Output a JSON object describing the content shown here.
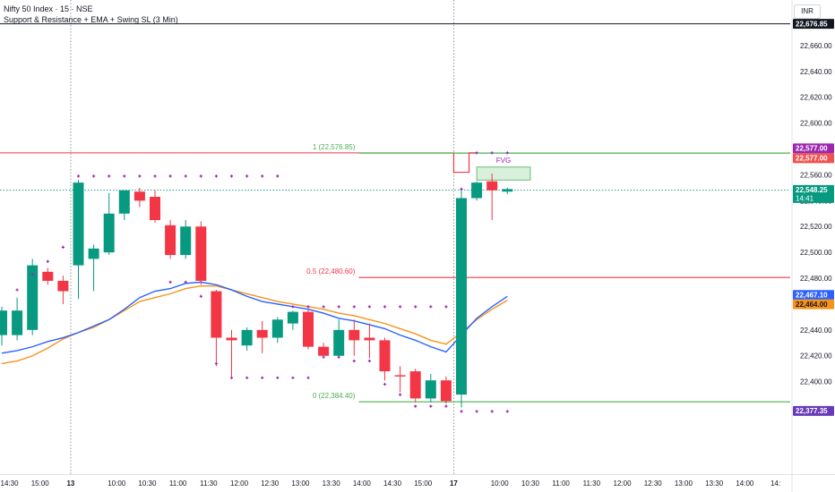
{
  "header": {
    "title": "Nifty 50 Index · 15 · NSE",
    "indicator": "Support & Resistance + EMA + Swing SL (3 Min)",
    "currency": "INR"
  },
  "chart_data": {
    "type": "candlestick",
    "ylim": [
      22360,
      22690
    ],
    "y_ticks": [
      22400,
      22420,
      22440,
      22460,
      22480,
      22500,
      22520,
      22540,
      22560,
      22580,
      22600,
      22620,
      22640,
      22660
    ],
    "y_tick_labels": [
      "22,400.00",
      "22,420.00",
      "22,440.00",
      "22,460.00",
      "22,480.00",
      "22,500.00",
      "22,520.00",
      "22,540.00",
      "22,560.00",
      "22,580.00",
      "22,600.00",
      "22,620.00",
      "22,640.00",
      "22,660.00"
    ],
    "x_tick_labels": [
      {
        "i": 0.5,
        "label": "14:30"
      },
      {
        "i": 2.5,
        "label": "15:00"
      },
      {
        "i": 4.5,
        "label": "13"
      },
      {
        "i": 7.5,
        "label": "10:00"
      },
      {
        "i": 9.5,
        "label": "10:30"
      },
      {
        "i": 11.5,
        "label": "11:00"
      },
      {
        "i": 13.5,
        "label": "11:30"
      },
      {
        "i": 15.5,
        "label": "12:00"
      },
      {
        "i": 17.5,
        "label": "12:30"
      },
      {
        "i": 19.5,
        "label": "13:00"
      },
      {
        "i": 21.5,
        "label": "13:30"
      },
      {
        "i": 23.5,
        "label": "14:00"
      },
      {
        "i": 25.5,
        "label": "14:30"
      },
      {
        "i": 27.5,
        "label": "15:00"
      },
      {
        "i": 29.5,
        "label": "17"
      },
      {
        "i": 32.5,
        "label": "10:00"
      },
      {
        "i": 34.5,
        "label": "10:30"
      },
      {
        "i": 36.5,
        "label": "11:00"
      },
      {
        "i": 38.5,
        "label": "11:30"
      },
      {
        "i": 40.5,
        "label": "12:00"
      },
      {
        "i": 42.5,
        "label": "12:30"
      },
      {
        "i": 44.5,
        "label": "13:00"
      },
      {
        "i": 46.5,
        "label": "13:30"
      },
      {
        "i": 48.5,
        "label": "14:00"
      },
      {
        "i": 50.5,
        "label": "14:"
      }
    ],
    "candles": [
      {
        "o": 22436,
        "h": 22458,
        "l": 22428,
        "c": 22455
      },
      {
        "o": 22436,
        "h": 22465,
        "l": 22432,
        "c": 22455
      },
      {
        "o": 22440,
        "h": 22495,
        "l": 22436,
        "c": 22490
      },
      {
        "o": 22485,
        "h": 22488,
        "l": 22475,
        "c": 22478
      },
      {
        "o": 22478,
        "h": 22482,
        "l": 22460,
        "c": 22470
      },
      {
        "o": 22490,
        "h": 22556,
        "l": 22464,
        "c": 22554
      },
      {
        "o": 22495,
        "h": 22506,
        "l": 22470,
        "c": 22503
      },
      {
        "o": 22500,
        "h": 22546,
        "l": 22498,
        "c": 22530
      },
      {
        "o": 22530,
        "h": 22548,
        "l": 22525,
        "c": 22548
      },
      {
        "o": 22547,
        "h": 22550,
        "l": 22535,
        "c": 22540
      },
      {
        "o": 22543,
        "h": 22548,
        "l": 22523,
        "c": 22525
      },
      {
        "o": 22521,
        "h": 22525,
        "l": 22495,
        "c": 22498
      },
      {
        "o": 22498,
        "h": 22525,
        "l": 22495,
        "c": 22520
      },
      {
        "o": 22520,
        "h": 22524,
        "l": 22475,
        "c": 22478
      },
      {
        "o": 22470,
        "h": 22471,
        "l": 22412,
        "c": 22434
      },
      {
        "o": 22434,
        "h": 22440,
        "l": 22404,
        "c": 22432
      },
      {
        "o": 22428,
        "h": 22442,
        "l": 22424,
        "c": 22440
      },
      {
        "o": 22440,
        "h": 22447,
        "l": 22422,
        "c": 22434
      },
      {
        "o": 22434,
        "h": 22450,
        "l": 22430,
        "c": 22448
      },
      {
        "o": 22445,
        "h": 22455,
        "l": 22440,
        "c": 22454
      },
      {
        "o": 22454,
        "h": 22456,
        "l": 22425,
        "c": 22427
      },
      {
        "o": 22427,
        "h": 22430,
        "l": 22418,
        "c": 22420
      },
      {
        "o": 22420,
        "h": 22448,
        "l": 22418,
        "c": 22440
      },
      {
        "o": 22440,
        "h": 22448,
        "l": 22420,
        "c": 22432
      },
      {
        "o": 22434,
        "h": 22445,
        "l": 22418,
        "c": 22432
      },
      {
        "o": 22432,
        "h": 22434,
        "l": 22401,
        "c": 22408
      },
      {
        "o": 22405,
        "h": 22412,
        "l": 22392,
        "c": 22404
      },
      {
        "o": 22408,
        "h": 22410,
        "l": 22384,
        "c": 22387
      },
      {
        "o": 22387,
        "h": 22406,
        "l": 22384,
        "c": 22401
      },
      {
        "o": 22401,
        "h": 22404,
        "l": 22383,
        "c": 22385
      },
      {
        "o": 22390,
        "h": 22549,
        "l": 22380,
        "c": 22542
      },
      {
        "o": 22542,
        "h": 22555,
        "l": 22540,
        "c": 22554
      },
      {
        "o": 22555,
        "h": 22561,
        "l": 22525,
        "c": 22548
      },
      {
        "o": 22547,
        "h": 22550,
        "l": 22545,
        "c": 22549
      }
    ],
    "ema_blue": [
      22422,
      22424,
      22427,
      22431,
      22434,
      22438,
      22443,
      22448,
      22456,
      22465,
      22470,
      22472,
      22476,
      22477,
      22475,
      22471,
      22466,
      22462,
      22460,
      22458,
      22456,
      22453,
      22449,
      22447,
      22444,
      22441,
      22436,
      22432,
      22427,
      22423,
      22436,
      22449,
      22458,
      22466
    ],
    "ema_orange": [
      22414,
      22416,
      22420,
      22426,
      22433,
      22438,
      22442,
      22448,
      22455,
      22462,
      22465,
      22468,
      22472,
      22474,
      22474,
      22471,
      22468,
      22465,
      22462,
      22460,
      22458,
      22456,
      22453,
      22451,
      22448,
      22445,
      22441,
      22437,
      22432,
      22429,
      22438,
      22448,
      22456,
      22463
    ],
    "swing_high_dots": [
      {
        "i": 1,
        "v": 22471
      },
      {
        "i": 2,
        "v": 22483
      },
      {
        "i": 3,
        "v": 22493
      },
      {
        "i": 4,
        "v": 22504
      },
      {
        "i": 5,
        "v": 22559
      },
      {
        "i": 6,
        "v": 22559
      },
      {
        "i": 7,
        "v": 22559
      },
      {
        "i": 8,
        "v": 22559
      },
      {
        "i": 9,
        "v": 22559
      },
      {
        "i": 10,
        "v": 22559
      },
      {
        "i": 11,
        "v": 22559
      },
      {
        "i": 12,
        "v": 22559
      },
      {
        "i": 13,
        "v": 22559
      },
      {
        "i": 14,
        "v": 22559
      },
      {
        "i": 15,
        "v": 22559
      },
      {
        "i": 16,
        "v": 22559
      },
      {
        "i": 17,
        "v": 22559
      },
      {
        "i": 18,
        "v": 22559
      },
      {
        "i": 19,
        "v": 22458
      },
      {
        "i": 20,
        "v": 22458
      },
      {
        "i": 21,
        "v": 22458
      },
      {
        "i": 22,
        "v": 22458
      },
      {
        "i": 23,
        "v": 22458
      },
      {
        "i": 24,
        "v": 22458
      },
      {
        "i": 25,
        "v": 22458
      },
      {
        "i": 26,
        "v": 22458
      },
      {
        "i": 27,
        "v": 22458
      },
      {
        "i": 28,
        "v": 22458
      },
      {
        "i": 29,
        "v": 22458
      },
      {
        "i": 30,
        "v": 22549
      },
      {
        "i": 31,
        "v": 22577
      },
      {
        "i": 32,
        "v": 22577
      },
      {
        "i": 33,
        "v": 22577
      }
    ],
    "swing_low_dots": [
      {
        "i": 11,
        "v": 22477
      },
      {
        "i": 12,
        "v": 22477
      },
      {
        "i": 13,
        "v": 22466
      },
      {
        "i": 14,
        "v": 22414
      },
      {
        "i": 15,
        "v": 22403
      },
      {
        "i": 16,
        "v": 22403
      },
      {
        "i": 17,
        "v": 22403
      },
      {
        "i": 18,
        "v": 22403
      },
      {
        "i": 19,
        "v": 22403
      },
      {
        "i": 20,
        "v": 22403
      },
      {
        "i": 21,
        "v": 22419
      },
      {
        "i": 22,
        "v": 22419
      },
      {
        "i": 23,
        "v": 22416
      },
      {
        "i": 24,
        "v": 22416
      },
      {
        "i": 25,
        "v": 22398
      },
      {
        "i": 26,
        "v": 22390
      },
      {
        "i": 27,
        "v": 22381
      },
      {
        "i": 28,
        "v": 22381
      },
      {
        "i": 29,
        "v": 22381
      },
      {
        "i": 30,
        "v": 22377
      },
      {
        "i": 31,
        "v": 22377
      },
      {
        "i": 32,
        "v": 22377
      },
      {
        "i": 33,
        "v": 22377
      }
    ],
    "levels": [
      {
        "value": 22576.85,
        "label": "1 (22,576.85)",
        "color": "#4caf50"
      },
      {
        "value": 22480.6,
        "label": "0.5 (22,480.60)",
        "color": "#f23645"
      },
      {
        "value": 22384.4,
        "label": "0 (22,384.40)",
        "color": "#4caf50"
      }
    ],
    "resistance_left": {
      "value": 22577,
      "color": "#f23645"
    },
    "top_line": {
      "value": 22676.85,
      "color": "#131722"
    },
    "last_price": 22548.25,
    "fvg": {
      "label": "FVG",
      "i0": 31,
      "i1": 34.5,
      "top": 22566,
      "bottom": 22556
    },
    "red_step": [
      {
        "i": 29.5,
        "v": 22577
      },
      {
        "i": 29.5,
        "v": 22562
      },
      {
        "i": 30.5,
        "v": 22562
      },
      {
        "i": 30.5,
        "v": 22577
      },
      {
        "i": 31,
        "v": 22577
      }
    ],
    "session_breaks": [
      4.5,
      29.5
    ],
    "price_tags": [
      {
        "value": 22676.85,
        "label": "22,676.85",
        "bg": "#131722",
        "fg": "#ffffff"
      },
      {
        "value": 22577.0,
        "label": "22,577.00",
        "bg": "#9c27b0",
        "fg": "#ffffff",
        "offset": -5
      },
      {
        "value": 22577.0,
        "label": "22,577.00",
        "bg": "#ef5350",
        "fg": "#ffffff",
        "offset": 6
      },
      {
        "value": 22548.25,
        "label": "22,548.25",
        "sub": "14:41",
        "bg": "#089981",
        "fg": "#ffffff"
      },
      {
        "value": 22467.1,
        "label": "22,467.10",
        "bg": "#2962ff",
        "fg": "#ffffff"
      },
      {
        "value": 22464.0,
        "label": "22,464.00",
        "bg": "#f7931a",
        "fg": "#131722",
        "offset": 6
      },
      {
        "value": 22377.35,
        "label": "22,377.35",
        "bg": "#673ab7",
        "fg": "#ffffff"
      }
    ],
    "colors": {
      "up": "#089981",
      "down": "#f23645",
      "ema_blue": "#2962ff",
      "ema_orange": "#f7931a",
      "dots": "#9c27b0",
      "fvg_fill": "#d8f0dc",
      "fvg_border": "#4caf50",
      "fvg_text": "#9c27b0"
    }
  }
}
